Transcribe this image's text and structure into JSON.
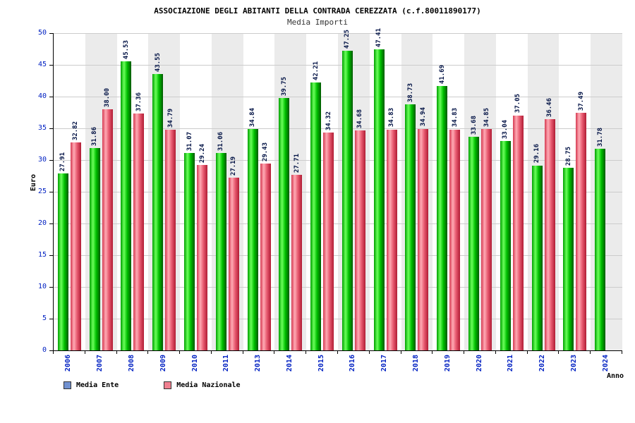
{
  "header": {
    "title": "ASSOCIAZIONE DEGLI ABITANTI DELLA CONTRADA CEREZZATA (c.f.80011890177)",
    "subtitle": "Media Importi"
  },
  "chart_data": {
    "type": "bar",
    "title": "Media Importi",
    "ylabel": "Euro",
    "xlabel": "Anno",
    "ylim": [
      0,
      50
    ],
    "yticks": [
      0,
      5,
      10,
      15,
      20,
      25,
      30,
      35,
      40,
      45,
      50
    ],
    "grid": true,
    "legend_position": "bottom-left",
    "categories": [
      "2006",
      "2007",
      "2008",
      "2009",
      "2010",
      "2011",
      "2013",
      "2014",
      "2015",
      "2016",
      "2017",
      "2018",
      "2019",
      "2020",
      "2021",
      "2022",
      "2023",
      "2024"
    ],
    "series": [
      {
        "key": "media-ente",
        "name": "Media Ente",
        "legend_color": "#7191d0",
        "bar_gradient": [
          "#00a000",
          "#6aff5a",
          "#00c000",
          "#005800"
        ],
        "values": [
          "27.91",
          "31.86",
          "45.53",
          "43.55",
          "31.07",
          "31.06",
          "34.84",
          "39.75",
          "42.21",
          "47.25",
          "47.41",
          "38.73",
          "41.69",
          "33.68",
          "33.04",
          "29.16",
          "28.75",
          "31.78"
        ]
      },
      {
        "key": "media-nazionale",
        "name": "Media Nazionale",
        "legend_color": "#f08090",
        "bar_gradient": [
          "#d63a52",
          "#ffaab4",
          "#e85a70",
          "#b01c34"
        ],
        "values": [
          "32.82",
          "38.00",
          "37.36",
          "34.79",
          "29.24",
          "27.19",
          "29.43",
          "27.71",
          "34.32",
          "34.68",
          "34.83",
          "34.94",
          "34.83",
          "34.85",
          "37.05",
          "36.46",
          "37.49",
          null
        ]
      }
    ],
    "stripe_colors": [
      "#ffffff",
      "#ebebeb"
    ],
    "grid_color": "#cccccc"
  }
}
